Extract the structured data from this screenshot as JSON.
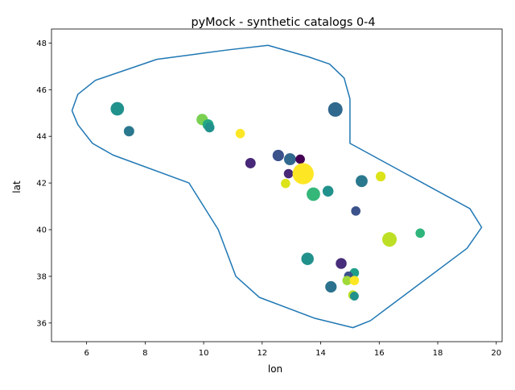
{
  "chart_data": {
    "type": "scatter",
    "title": "pyMock - synthetic catalogs 0-4",
    "xlabel": "lon",
    "ylabel": "lat",
    "xlim": [
      4.8,
      20.2
    ],
    "ylim": [
      35.2,
      48.6
    ],
    "xticks": [
      6,
      8,
      10,
      12,
      14,
      16,
      18,
      20
    ],
    "yticks": [
      36,
      38,
      40,
      42,
      44,
      46,
      48
    ],
    "grid": false,
    "boundary": {
      "name": "region outline",
      "color": "#1f77b4",
      "lon": [
        5.5,
        5.7,
        6.3,
        8.4,
        9.6,
        10.8,
        12.2,
        13.6,
        14.3,
        14.8,
        15.0,
        15.0,
        19.1,
        19.5,
        19.0,
        15.7,
        15.1,
        13.8,
        11.9,
        11.1,
        10.5,
        9.5,
        6.9,
        6.2,
        5.7,
        5.5
      ],
      "lat": [
        45.1,
        45.8,
        46.4,
        47.3,
        47.5,
        47.7,
        47.9,
        47.4,
        47.1,
        46.5,
        45.6,
        43.7,
        40.9,
        40.1,
        39.2,
        36.1,
        35.8,
        36.2,
        37.1,
        38.0,
        40.0,
        42.0,
        43.2,
        43.7,
        44.5,
        45.1
      ]
    },
    "points": [
      {
        "lon": 7.05,
        "lat": 45.18,
        "mag": 4.4,
        "color": "#21918c"
      },
      {
        "lon": 7.45,
        "lat": 44.22,
        "mag": 3.8,
        "color": "#2a788e"
      },
      {
        "lon": 9.95,
        "lat": 44.72,
        "mag": 4.0,
        "color": "#7ad151"
      },
      {
        "lon": 10.15,
        "lat": 44.5,
        "mag": 3.9,
        "color": "#22a884"
      },
      {
        "lon": 10.2,
        "lat": 44.38,
        "mag": 3.7,
        "color": "#21918c"
      },
      {
        "lon": 11.25,
        "lat": 44.12,
        "mag": 3.6,
        "color": "#fde725"
      },
      {
        "lon": 14.5,
        "lat": 45.15,
        "mag": 4.6,
        "color": "#31688e"
      },
      {
        "lon": 11.6,
        "lat": 42.85,
        "mag": 3.8,
        "color": "#482878"
      },
      {
        "lon": 12.55,
        "lat": 43.18,
        "mag": 4.0,
        "color": "#3b528b"
      },
      {
        "lon": 12.95,
        "lat": 43.02,
        "mag": 4.1,
        "color": "#31688e"
      },
      {
        "lon": 13.3,
        "lat": 43.02,
        "mag": 3.6,
        "color": "#440154"
      },
      {
        "lon": 12.9,
        "lat": 42.4,
        "mag": 3.6,
        "color": "#482878"
      },
      {
        "lon": 13.4,
        "lat": 42.4,
        "mag": 5.9,
        "color": "#fde725"
      },
      {
        "lon": 12.8,
        "lat": 41.98,
        "mag": 3.6,
        "color": "#dce319"
      },
      {
        "lon": 13.75,
        "lat": 41.52,
        "mag": 4.4,
        "color": "#35b779"
      },
      {
        "lon": 14.25,
        "lat": 41.65,
        "mag": 3.9,
        "color": "#21918c"
      },
      {
        "lon": 15.4,
        "lat": 42.08,
        "mag": 4.1,
        "color": "#2a788e"
      },
      {
        "lon": 16.05,
        "lat": 42.28,
        "mag": 3.7,
        "color": "#dce319"
      },
      {
        "lon": 15.2,
        "lat": 40.8,
        "mag": 3.6,
        "color": "#3b528b"
      },
      {
        "lon": 16.35,
        "lat": 39.58,
        "mag": 4.6,
        "color": "#bddf26"
      },
      {
        "lon": 17.4,
        "lat": 39.85,
        "mag": 3.6,
        "color": "#2fb47c"
      },
      {
        "lon": 13.55,
        "lat": 38.75,
        "mag": 4.2,
        "color": "#21918c"
      },
      {
        "lon": 14.7,
        "lat": 38.55,
        "mag": 3.9,
        "color": "#472d7b"
      },
      {
        "lon": 15.15,
        "lat": 38.15,
        "mag": 3.6,
        "color": "#1f9e89"
      },
      {
        "lon": 14.95,
        "lat": 38.02,
        "mag": 3.5,
        "color": "#3b528b"
      },
      {
        "lon": 14.9,
        "lat": 37.82,
        "mag": 3.6,
        "color": "#a0da39"
      },
      {
        "lon": 15.15,
        "lat": 37.82,
        "mag": 3.6,
        "color": "#fde725"
      },
      {
        "lon": 14.35,
        "lat": 37.55,
        "mag": 4.0,
        "color": "#2c728e"
      },
      {
        "lon": 15.1,
        "lat": 37.2,
        "mag": 3.6,
        "color": "#bddf26"
      },
      {
        "lon": 15.15,
        "lat": 37.15,
        "mag": 3.5,
        "color": "#21918c"
      }
    ]
  }
}
